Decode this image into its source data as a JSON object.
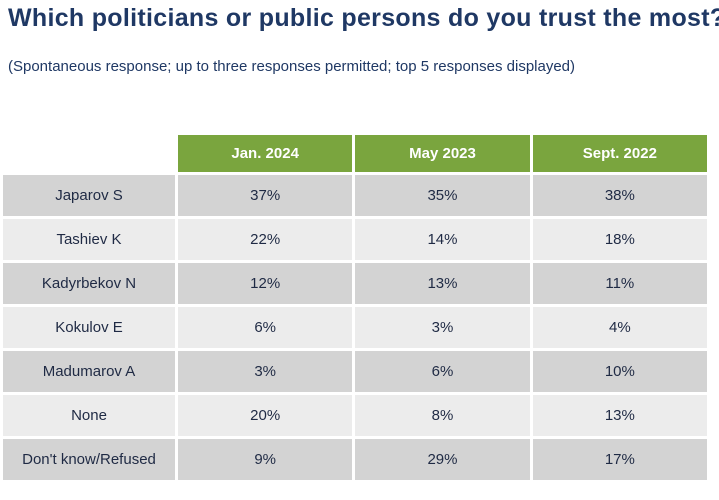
{
  "title": "Which politicians or public persons do you trust the most?",
  "subtitle": "(Spontaneous response; up to three responses permitted; top 5 responses displayed)",
  "colors": {
    "header_bg": "#7aa53e",
    "title_text": "#1f3864",
    "row_dark": "#d3d3d3",
    "row_light": "#ececec"
  },
  "chart_data": {
    "type": "table",
    "title": "Which politicians or public persons do you trust the most?",
    "subtitle": "(Spontaneous response; up to three responses permitted; top 5 responses displayed)",
    "columns": [
      "Jan. 2024",
      "May 2023",
      "Sept. 2022"
    ],
    "rows": [
      {
        "label": "Japarov S",
        "values": [
          "37%",
          "35%",
          "38%"
        ]
      },
      {
        "label": "Tashiev K",
        "values": [
          "22%",
          "14%",
          "18%"
        ]
      },
      {
        "label": "Kadyrbekov N",
        "values": [
          "12%",
          "13%",
          "11%"
        ]
      },
      {
        "label": "Kokulov E",
        "values": [
          "6%",
          "3%",
          "4%"
        ]
      },
      {
        "label": "Madumarov A",
        "values": [
          "3%",
          "6%",
          "10%"
        ]
      },
      {
        "label": "None",
        "values": [
          "20%",
          "8%",
          "13%"
        ]
      },
      {
        "label": "Don't know/Refused",
        "values": [
          "9%",
          "29%",
          "17%"
        ]
      }
    ]
  }
}
